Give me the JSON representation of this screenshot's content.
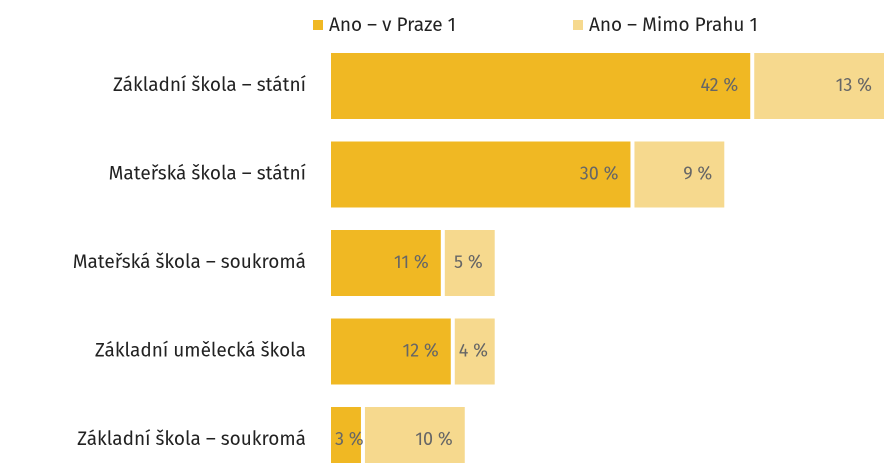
{
  "chart_data": {
    "type": "stacked-bar-horizontal",
    "categories": [
      "Základní škola – státní",
      "Mateřská škola – státní",
      "Mateřská škola – soukromá",
      "Základní umělecká škola",
      "Základní škola – soukromá"
    ],
    "series": [
      {
        "name": "Ano – v Praze 1",
        "color": "#f0b823",
        "values": [
          42,
          30,
          11,
          12,
          3
        ],
        "value_labels": [
          "42 %",
          "30 %",
          "11 %",
          "12 %",
          "3 %"
        ]
      },
      {
        "name": "Ano – Mimo Prahu 1",
        "color": "#f6d98e",
        "values": [
          13,
          9,
          5,
          4,
          10
        ],
        "value_labels": [
          "13 %",
          "9 %",
          "5 %",
          "4 %",
          "10 %"
        ]
      }
    ],
    "legend": "top"
  }
}
